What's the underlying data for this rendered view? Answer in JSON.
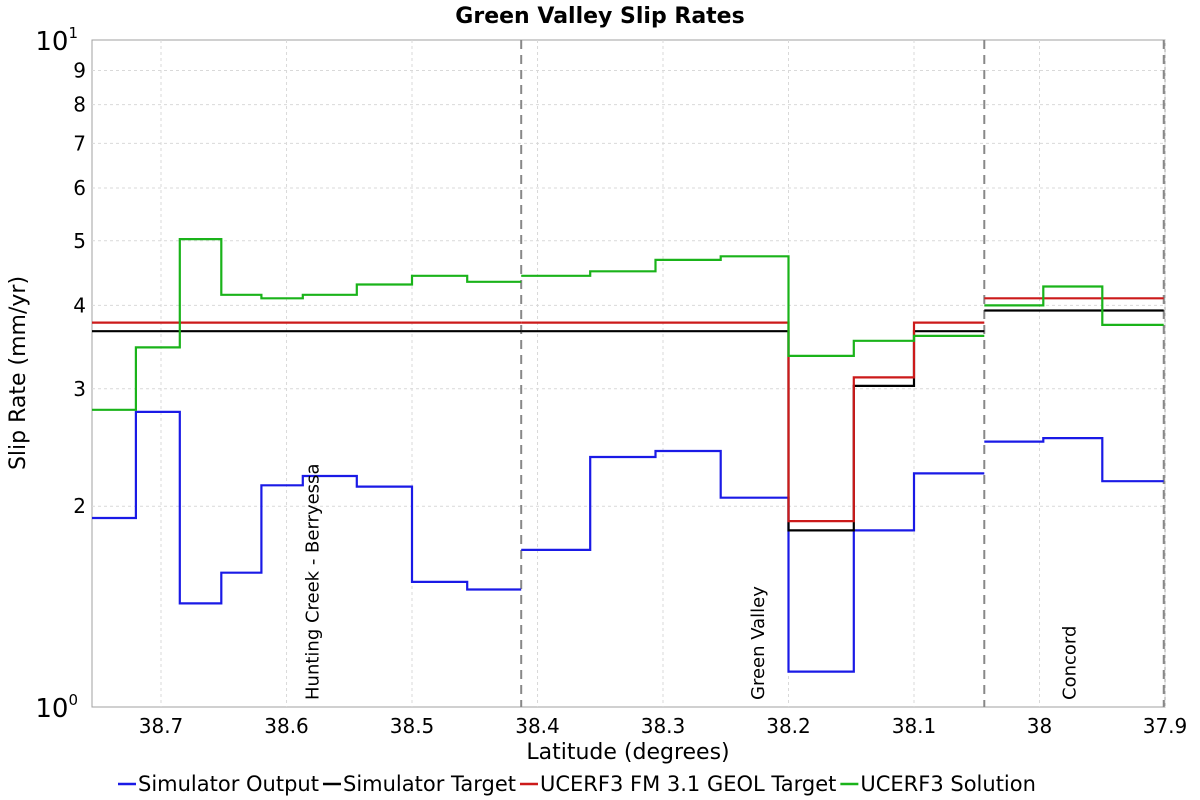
{
  "chart_data": {
    "type": "line",
    "title": "Green Valley Slip Rates",
    "xlabel": "Latitude (degrees)",
    "ylabel": "Slip Rate (mm/yr)",
    "xlim": [
      38.755,
      37.9
    ],
    "x_reversed": true,
    "ylim": [
      1,
      10
    ],
    "y_scale": "log",
    "grid": true,
    "legend_position": "bottom",
    "x_ticks": [
      "38.7",
      "38.6",
      "38.5",
      "38.4",
      "38.3",
      "38.2",
      "38.1",
      "38",
      "37.9"
    ],
    "x_tick_values": [
      38.7,
      38.6,
      38.5,
      38.4,
      38.3,
      38.2,
      38.1,
      38.0,
      37.9
    ],
    "y_major_ticks": [
      {
        "value": 1,
        "base": "10",
        "exp": "0"
      },
      {
        "value": 10,
        "base": "10",
        "exp": "1"
      }
    ],
    "y_minor_ticks": [
      {
        "value": 2,
        "label": "2"
      },
      {
        "value": 3,
        "label": "3"
      },
      {
        "value": 4,
        "label": "4"
      },
      {
        "value": 5,
        "label": "5"
      },
      {
        "value": 6,
        "label": "6"
      },
      {
        "value": 7,
        "label": "7"
      },
      {
        "value": 8,
        "label": "8"
      },
      {
        "value": 9,
        "label": "9"
      }
    ],
    "section_boundaries": [
      38.413,
      38.044,
      37.901
    ],
    "section_labels": [
      {
        "text": "Hunting Creek - Berryessa",
        "x": 38.58
      },
      {
        "text": "Green Valley",
        "x": 38.225
      },
      {
        "text": "Concord",
        "x": 37.977
      }
    ],
    "series": [
      {
        "name": "Simulator Output",
        "color": "#1a1ae6",
        "segments": [
          [
            [
              38.755,
              1.92
            ],
            [
              38.72,
              1.92
            ],
            [
              38.72,
              2.77
            ],
            [
              38.685,
              2.77
            ],
            [
              38.685,
              1.43
            ],
            [
              38.652,
              1.43
            ],
            [
              38.652,
              1.59
            ],
            [
              38.62,
              1.59
            ],
            [
              38.62,
              2.15
            ],
            [
              38.587,
              2.15
            ],
            [
              38.587,
              2.22
            ],
            [
              38.544,
              2.22
            ],
            [
              38.544,
              2.14
            ],
            [
              38.5,
              2.14
            ],
            [
              38.5,
              1.54
            ],
            [
              38.456,
              1.54
            ],
            [
              38.456,
              1.5
            ],
            [
              38.413,
              1.5
            ]
          ],
          [
            [
              38.413,
              1.72
            ],
            [
              38.358,
              1.72
            ],
            [
              38.358,
              2.37
            ],
            [
              38.306,
              2.37
            ],
            [
              38.306,
              2.42
            ],
            [
              38.254,
              2.42
            ],
            [
              38.254,
              2.06
            ],
            [
              38.2,
              2.06
            ],
            [
              38.2,
              1.13
            ],
            [
              38.148,
              1.13
            ],
            [
              38.148,
              1.84
            ],
            [
              38.1,
              1.84
            ],
            [
              38.1,
              2.24
            ],
            [
              38.044,
              2.24
            ]
          ],
          [
            [
              38.044,
              2.5
            ],
            [
              37.997,
              2.5
            ],
            [
              37.997,
              2.53
            ],
            [
              37.95,
              2.53
            ],
            [
              37.95,
              2.18
            ],
            [
              37.901,
              2.18
            ]
          ]
        ]
      },
      {
        "name": "Simulator Target",
        "color": "#000000",
        "segments": [
          [
            [
              38.755,
              3.66
            ],
            [
              38.413,
              3.66
            ]
          ],
          [
            [
              38.413,
              3.66
            ],
            [
              38.2,
              3.66
            ],
            [
              38.2,
              1.84
            ],
            [
              38.148,
              1.84
            ],
            [
              38.148,
              3.03
            ],
            [
              38.1,
              3.03
            ],
            [
              38.1,
              3.66
            ],
            [
              38.044,
              3.66
            ]
          ],
          [
            [
              38.044,
              3.93
            ],
            [
              37.901,
              3.93
            ]
          ]
        ]
      },
      {
        "name": "UCERF3 FM 3.1 GEOL Target",
        "color": "#cc1a1a",
        "segments": [
          [
            [
              38.755,
              3.77
            ],
            [
              38.413,
              3.77
            ]
          ],
          [
            [
              38.413,
              3.77
            ],
            [
              38.2,
              3.77
            ],
            [
              38.2,
              1.9
            ],
            [
              38.148,
              1.9
            ],
            [
              38.148,
              3.12
            ],
            [
              38.1,
              3.12
            ],
            [
              38.1,
              3.77
            ],
            [
              38.044,
              3.77
            ]
          ],
          [
            [
              38.044,
              4.1
            ],
            [
              37.901,
              4.1
            ]
          ]
        ]
      },
      {
        "name": "UCERF3 Solution",
        "color": "#1ab31a",
        "segments": [
          [
            [
              38.755,
              2.79
            ],
            [
              38.72,
              2.79
            ],
            [
              38.72,
              3.46
            ],
            [
              38.685,
              3.46
            ],
            [
              38.685,
              5.03
            ],
            [
              38.652,
              5.03
            ],
            [
              38.652,
              4.15
            ],
            [
              38.62,
              4.15
            ],
            [
              38.62,
              4.1
            ],
            [
              38.587,
              4.1
            ],
            [
              38.587,
              4.15
            ],
            [
              38.544,
              4.15
            ],
            [
              38.544,
              4.3
            ],
            [
              38.5,
              4.3
            ],
            [
              38.5,
              4.43
            ],
            [
              38.456,
              4.43
            ],
            [
              38.456,
              4.34
            ],
            [
              38.413,
              4.34
            ]
          ],
          [
            [
              38.413,
              4.43
            ],
            [
              38.358,
              4.43
            ],
            [
              38.358,
              4.5
            ],
            [
              38.306,
              4.5
            ],
            [
              38.306,
              4.68
            ],
            [
              38.254,
              4.68
            ],
            [
              38.254,
              4.74
            ],
            [
              38.2,
              4.74
            ],
            [
              38.2,
              3.36
            ],
            [
              38.148,
              3.36
            ],
            [
              38.148,
              3.54
            ],
            [
              38.1,
              3.54
            ],
            [
              38.1,
              3.6
            ],
            [
              38.044,
              3.6
            ]
          ],
          [
            [
              38.044,
              4.0
            ],
            [
              37.997,
              4.0
            ],
            [
              37.997,
              4.27
            ],
            [
              37.95,
              4.27
            ],
            [
              37.95,
              3.74
            ],
            [
              37.901,
              3.74
            ]
          ]
        ]
      }
    ]
  }
}
